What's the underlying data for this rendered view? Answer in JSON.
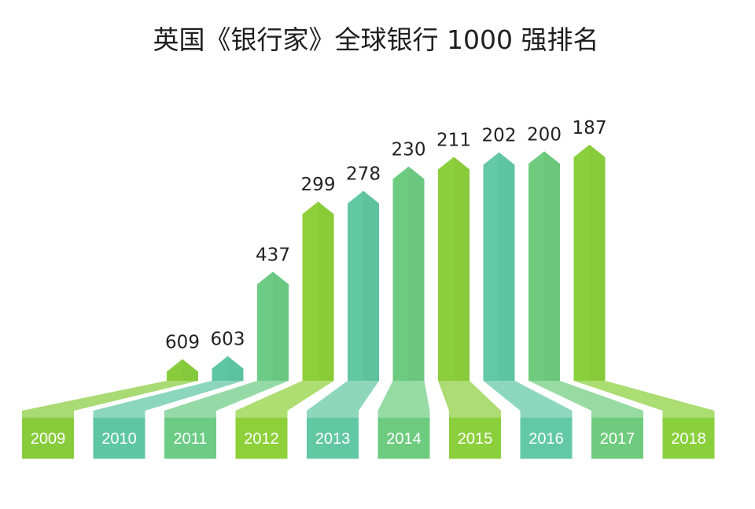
{
  "chart_data": {
    "type": "bar",
    "title": "英国《银行家》全球银行 1000 强排名",
    "categories": [
      "2009",
      "2010",
      "2011",
      "2012",
      "2013",
      "2014",
      "2015",
      "2016",
      "2017",
      "2018"
    ],
    "values": [
      609,
      603,
      437,
      299,
      278,
      230,
      211,
      202,
      200,
      187
    ],
    "value_labels": [
      "609",
      "603",
      "437",
      "299",
      "278",
      "230",
      "211",
      "202",
      "200",
      "187"
    ],
    "grid": false,
    "legend": "none",
    "colors": [
      "#88cc3c",
      "#5fc6a4",
      "#6ccb84",
      "#8ed03a",
      "#62c7a3",
      "#6dcb80",
      "#8ccf3c",
      "#62c8a6",
      "#6fcb7e",
      "#8ad03c"
    ]
  }
}
